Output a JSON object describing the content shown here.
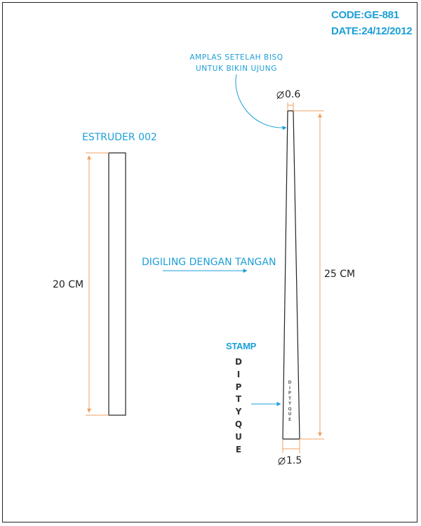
{
  "header": {
    "code": "CODE:GE-881",
    "date": "DATE:24/12/2012"
  },
  "note": {
    "line1": "AMPLAS SETELAH BISQ",
    "line2": "UNTUK BIKIN UJUNG"
  },
  "left_piece": {
    "title": "ESTRUDER 002",
    "length_label": "20 CM"
  },
  "process": {
    "label": "DIGILING DENGAN TANGAN"
  },
  "right_piece": {
    "top_diameter": "0.6",
    "bottom_diameter": "1.5",
    "length_label": "25 CM"
  },
  "stamp": {
    "label": "STAMP",
    "letters": [
      "D",
      "I",
      "P",
      "T",
      "Y",
      "Q",
      "U",
      "E"
    ]
  },
  "colors": {
    "accent_blue": "#1c9fd8",
    "dimension_orange": "#f0a060",
    "outline": "#222222"
  }
}
